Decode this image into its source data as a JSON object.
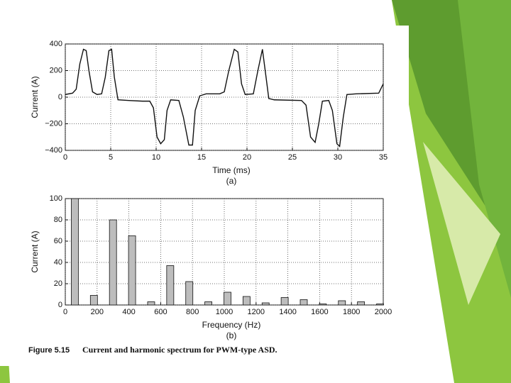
{
  "chart_data": [
    {
      "type": "line",
      "x_label": "Time (ms)",
      "y_label": "Current (A)",
      "sub_label": "(a)",
      "x": [
        0,
        0.8,
        1.2,
        1.6,
        2.0,
        2.3,
        2.6,
        3.0,
        3.5,
        4.0,
        4.4,
        4.8,
        5.1,
        5.4,
        5.8,
        7,
        8.5,
        9.3,
        9.7,
        10.1,
        10.5,
        10.9,
        11.2,
        11.6,
        12.5,
        13.0,
        13.6,
        14.0,
        14.3,
        14.8,
        15.5,
        17,
        17.5,
        18.0,
        18.6,
        19.0,
        19.4,
        19.8,
        20.7,
        21.2,
        21.7,
        22.1,
        22.4,
        23,
        26,
        26.5,
        27.0,
        27.5,
        27.9,
        28.3,
        29,
        29.4,
        29.9,
        30.2,
        30.6,
        31.0,
        32,
        34.5,
        35
      ],
      "series": [
        {
          "color": "#111111",
          "values": [
            20,
            30,
            60,
            250,
            360,
            350,
            200,
            40,
            20,
            25,
            150,
            350,
            360,
            150,
            -20,
            -25,
            -30,
            -30,
            -80,
            -300,
            -350,
            -320,
            -100,
            -20,
            -25,
            -150,
            -360,
            -360,
            -100,
            10,
            25,
            25,
            40,
            200,
            360,
            340,
            100,
            20,
            25,
            200,
            360,
            150,
            -10,
            -20,
            -25,
            -60,
            -300,
            -340,
            -200,
            -30,
            -25,
            -100,
            -350,
            -370,
            -150,
            20,
            25,
            30,
            100
          ]
        }
      ],
      "xlim": [
        0,
        35
      ],
      "xticks": [
        0,
        5,
        10,
        15,
        20,
        25,
        30,
        35
      ],
      "ylim": [
        -400,
        400
      ],
      "yticks": [
        {
          "value": -400,
          "label": "−400"
        },
        {
          "value": -200,
          "label": "−200"
        },
        0,
        200,
        400
      ],
      "grid": true
    },
    {
      "type": "bar",
      "x_label": "Frequency (Hz)",
      "y_label": "Current (A)",
      "sub_label": "(b)",
      "x": [
        60,
        180,
        300,
        420,
        540,
        660,
        780,
        900,
        1020,
        1140,
        1260,
        1380,
        1500,
        1620,
        1740,
        1860,
        1980
      ],
      "series": [
        {
          "color": "#bdbdbd",
          "values": [
            100,
            9,
            80,
            65,
            3,
            37,
            22,
            3,
            12,
            8,
            2,
            7,
            5,
            1,
            4,
            3,
            1
          ]
        }
      ],
      "xlim": [
        0,
        2000
      ],
      "xticks": [
        0,
        200,
        400,
        600,
        800,
        1000,
        1200,
        1400,
        1600,
        1800,
        2000
      ],
      "ylim": [
        0,
        100
      ],
      "yticks": [
        0,
        20,
        40,
        60,
        80,
        100
      ],
      "grid": true
    }
  ],
  "figure_caption": {
    "label": "Figure 5.15",
    "text": "Current and harmonic spectrum for PWM-type ASD."
  }
}
